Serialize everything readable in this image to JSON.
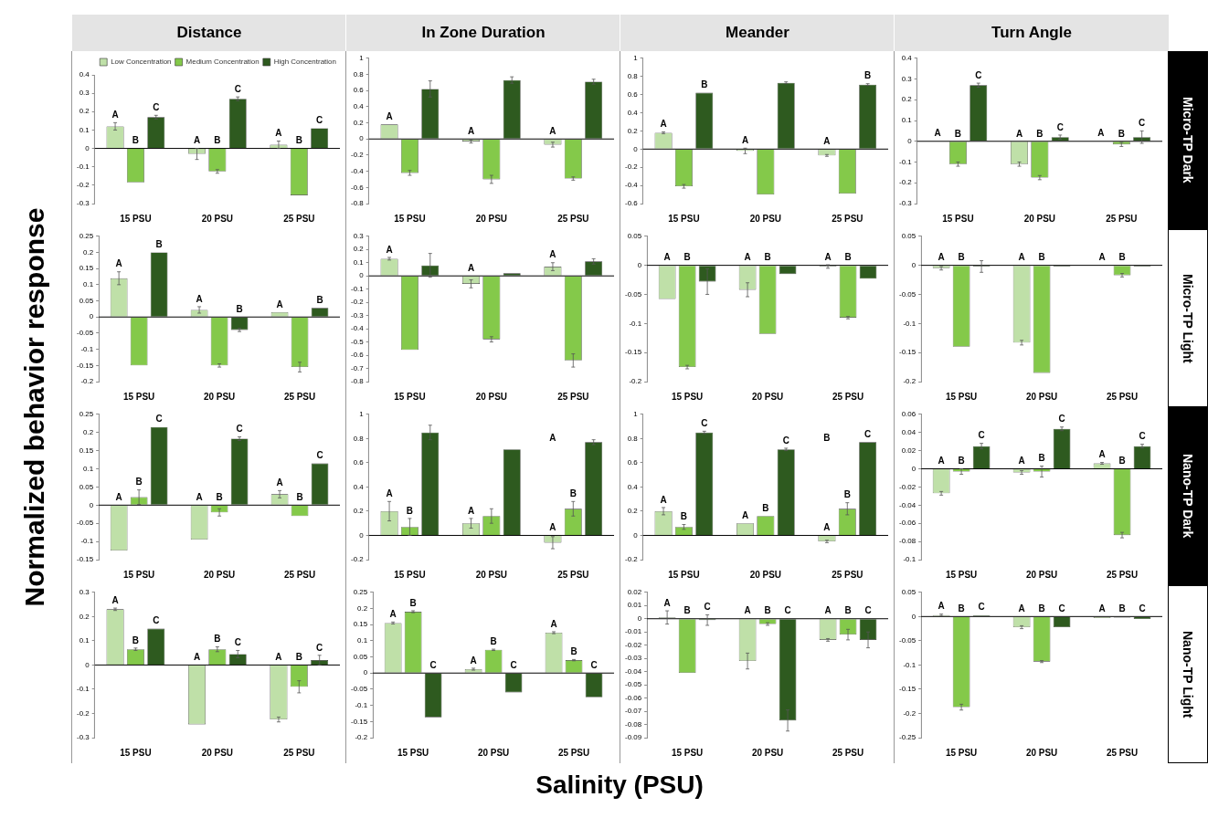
{
  "chart_data": [
    {
      "type": "bar",
      "title": "Distance",
      "categories": [
        "15 PSU",
        "20 PSU",
        "25 PSU"
      ],
      "ylim": [
        -0.3,
        0.4
      ],
      "yticks": [
        -0.3,
        -0.2,
        -0.1,
        0,
        0.1,
        0.2,
        0.3,
        0.4
      ],
      "legend": "top right",
      "series": [
        {
          "name": "Low Concentration",
          "color": "#bfe0a8",
          "values": [
            0.12,
            -0.03,
            0.02
          ],
          "errors": [
            0.02,
            0.03,
            0.02
          ],
          "value_labels": [
            "A",
            "A",
            "A"
          ]
        },
        {
          "name": "Medium Concentration",
          "color": "#84c94a",
          "values": [
            -0.185,
            -0.125,
            -0.255
          ],
          "errors": [
            null,
            0.01,
            null
          ],
          "value_labels": [
            "B",
            "B",
            "B"
          ]
        },
        {
          "name": "High Concentration",
          "color": "#2e5a1f",
          "values": [
            0.17,
            0.27,
            0.11
          ],
          "errors": [
            0.01,
            0.01,
            null
          ],
          "value_labels": [
            "C",
            "C",
            "C"
          ]
        }
      ]
    },
    {
      "type": "bar",
      "title": "In Zone Duration",
      "categories": [
        "15 PSU",
        "20 PSU",
        "25 PSU"
      ],
      "ylim": [
        -0.8,
        1
      ],
      "yticks": [
        -0.8,
        -0.6,
        -0.4,
        -0.2,
        0,
        0.2,
        0.4,
        0.6,
        0.8,
        1
      ],
      "series": [
        {
          "color": "#bfe0a8",
          "values": [
            0.18,
            -0.03,
            -0.07
          ],
          "errors": [
            null,
            0.02,
            0.03
          ],
          "value_labels": [
            "A",
            "A",
            "A"
          ]
        },
        {
          "color": "#84c94a",
          "values": [
            -0.42,
            -0.5,
            -0.49
          ],
          "errors": [
            0.03,
            0.05,
            0.02
          ]
        },
        {
          "color": "#2e5a1f",
          "values": [
            0.62,
            0.73,
            0.71
          ],
          "errors": [
            0.1,
            0.04,
            0.03
          ]
        }
      ]
    },
    {
      "type": "bar",
      "title": "Meander",
      "categories": [
        "15 PSU",
        "20 PSU",
        "25 PSU"
      ],
      "ylim": [
        -0.6,
        1
      ],
      "yticks": [
        -0.6,
        -0.4,
        -0.2,
        0,
        0.2,
        0.4,
        0.6,
        0.8,
        1
      ],
      "series": [
        {
          "color": "#bfe0a8",
          "values": [
            0.18,
            -0.02,
            -0.07
          ],
          "errors": [
            0.01,
            0.03,
            0.01
          ],
          "value_labels": [
            "A",
            "A",
            "A"
          ]
        },
        {
          "color": "#84c94a",
          "values": [
            -0.41,
            -0.5,
            -0.49
          ],
          "errors": [
            0.02,
            null,
            null
          ]
        },
        {
          "color": "#2e5a1f",
          "values": [
            0.62,
            0.73,
            0.71
          ],
          "errors": [
            null,
            0.01,
            0.01
          ],
          "value_labels": [
            "B",
            null,
            "B"
          ]
        }
      ]
    },
    {
      "type": "bar",
      "title": "Turn Angle",
      "y2label": "Micro-TP Dark",
      "categories": [
        "15 PSU",
        "20 PSU",
        "25 PSU"
      ],
      "ylim": [
        -0.3,
        0.4
      ],
      "yticks": [
        -0.3,
        -0.2,
        -0.1,
        0,
        0.1,
        0.2,
        0.3,
        0.4
      ],
      "series": [
        {
          "color": "#bfe0a8",
          "values": [
            0.002,
            -0.11,
            0.002
          ],
          "errors": [
            null,
            0.01,
            null
          ],
          "value_labels": [
            "A",
            "A",
            "A"
          ]
        },
        {
          "color": "#84c94a",
          "values": [
            -0.11,
            -0.175,
            -0.015
          ],
          "errors": [
            0.01,
            0.01,
            0.01
          ],
          "value_labels": [
            "B",
            "B",
            "B"
          ]
        },
        {
          "color": "#2e5a1f",
          "values": [
            0.27,
            0.02,
            0.02
          ],
          "errors": [
            0.01,
            0.01,
            0.03
          ],
          "value_labels": [
            "C",
            "C",
            "C"
          ]
        }
      ]
    },
    {
      "type": "bar",
      "categories": [
        "15 PSU",
        "20 PSU",
        "25 PSU"
      ],
      "ylim": [
        -0.2,
        0.25
      ],
      "yticks": [
        -0.2,
        -0.15,
        -0.1,
        -0.05,
        0,
        0.05,
        0.1,
        0.15,
        0.2,
        0.25
      ],
      "series": [
        {
          "color": "#bfe0a8",
          "values": [
            0.12,
            0.022,
            0.015
          ],
          "errors": [
            0.02,
            0.01,
            null
          ],
          "value_labels": [
            "A",
            "A",
            "A"
          ]
        },
        {
          "color": "#84c94a",
          "values": [
            -0.15,
            -0.15,
            -0.155
          ],
          "errors": [
            null,
            0.005,
            0.015
          ]
        },
        {
          "color": "#2e5a1f",
          "values": [
            0.2,
            -0.04,
            0.028
          ],
          "errors": [
            null,
            0.005,
            null
          ],
          "value_labels": [
            "B",
            "B",
            "B"
          ]
        }
      ]
    },
    {
      "type": "bar",
      "categories": [
        "15 PSU",
        "20 PSU",
        "25 PSU"
      ],
      "ylim": [
        -0.8,
        0.3
      ],
      "yticks": [
        -0.8,
        -0.7,
        -0.6,
        -0.5,
        -0.4,
        -0.3,
        -0.2,
        -0.1,
        0,
        0.1,
        0.2,
        0.3
      ],
      "series": [
        {
          "color": "#bfe0a8",
          "values": [
            0.13,
            -0.06,
            0.07
          ],
          "errors": [
            0.01,
            0.03,
            0.03
          ],
          "value_labels": [
            "A",
            "A",
            "A"
          ]
        },
        {
          "color": "#84c94a",
          "values": [
            -0.56,
            -0.48,
            -0.64
          ],
          "errors": [
            null,
            0.02,
            0.05
          ]
        },
        {
          "color": "#2e5a1f",
          "values": [
            0.08,
            0.02,
            0.11
          ],
          "errors": [
            0.09,
            null,
            0.02
          ]
        }
      ]
    },
    {
      "type": "bar",
      "categories": [
        "15 PSU",
        "20 PSU",
        "25 PSU"
      ],
      "ylim": [
        -0.2,
        0.05
      ],
      "yticks": [
        -0.2,
        -0.15,
        -0.1,
        -0.05,
        0,
        0.05
      ],
      "series": [
        {
          "color": "#bfe0a8",
          "values": [
            -0.058,
            -0.042,
            -0.002
          ],
          "errors": [
            null,
            0.012,
            0.003
          ],
          "value_labels": [
            "A",
            "A",
            "A"
          ]
        },
        {
          "color": "#84c94a",
          "values": [
            -0.175,
            -0.118,
            -0.09
          ],
          "errors": [
            0.003,
            null,
            0.002
          ],
          "value_labels": [
            "B",
            "B",
            "B"
          ]
        },
        {
          "color": "#2e5a1f",
          "values": [
            -0.028,
            -0.015,
            -0.023
          ],
          "errors": [
            0.022,
            null,
            null
          ]
        }
      ]
    },
    {
      "type": "bar",
      "y2label": "Micro-TP Light",
      "categories": [
        "15 PSU",
        "20 PSU",
        "25 PSU"
      ],
      "ylim": [
        -0.2,
        0.05
      ],
      "yticks": [
        -0.2,
        -0.15,
        -0.1,
        -0.05,
        0,
        0.05
      ],
      "series": [
        {
          "color": "#bfe0a8",
          "values": [
            -0.005,
            -0.133,
            -0.001
          ],
          "errors": [
            0.003,
            0.004,
            null
          ],
          "value_labels": [
            "A",
            "A",
            "A"
          ]
        },
        {
          "color": "#84c94a",
          "values": [
            -0.14,
            -0.185,
            -0.017
          ],
          "errors": [
            null,
            null,
            0.003
          ],
          "value_labels": [
            "B",
            "B",
            "B"
          ]
        },
        {
          "color": "#2e5a1f",
          "values": [
            -0.002,
            -0.002,
            -0.002
          ],
          "errors": [
            0.01,
            null,
            null
          ]
        }
      ]
    },
    {
      "type": "bar",
      "categories": [
        "15 PSU",
        "20 PSU",
        "25 PSU"
      ],
      "ylim": [
        -0.15,
        0.25
      ],
      "yticks": [
        -0.15,
        -0.1,
        -0.05,
        0,
        0.05,
        0.1,
        0.15,
        0.2,
        0.25
      ],
      "series": [
        {
          "color": "#bfe0a8",
          "values": [
            -0.125,
            -0.095,
            0.03
          ],
          "errors": [
            null,
            null,
            0.01
          ],
          "value_labels": [
            "A",
            "A",
            "A"
          ]
        },
        {
          "color": "#84c94a",
          "values": [
            0.022,
            -0.02,
            -0.03
          ],
          "errors": [
            0.02,
            0.01,
            null
          ],
          "value_labels": [
            "B",
            "B",
            "B"
          ]
        },
        {
          "color": "#2e5a1f",
          "values": [
            0.215,
            0.183,
            0.115
          ],
          "errors": [
            null,
            0.005,
            null
          ],
          "value_labels": [
            "C",
            "C",
            "C"
          ]
        }
      ]
    },
    {
      "type": "bar",
      "categories": [
        "15 PSU",
        "20 PSU",
        "25 PSU"
      ],
      "ylim": [
        -0.2,
        1
      ],
      "yticks": [
        -0.2,
        0,
        0.2,
        0.4,
        0.6,
        0.8,
        1
      ],
      "annotations": [
        "A"
      ],
      "series": [
        {
          "color": "#bfe0a8",
          "values": [
            0.2,
            0.1,
            -0.06
          ],
          "errors": [
            0.08,
            0.04,
            0.05
          ],
          "value_labels": [
            "A",
            "A",
            "A"
          ]
        },
        {
          "color": "#84c94a",
          "values": [
            0.07,
            0.16,
            0.22
          ],
          "errors": [
            0.07,
            0.06,
            0.06
          ],
          "value_labels": [
            "B",
            null,
            "B"
          ]
        },
        {
          "color": "#2e5a1f",
          "values": [
            0.85,
            0.71,
            0.77
          ],
          "errors": [
            0.06,
            null,
            0.02
          ]
        }
      ]
    },
    {
      "type": "bar",
      "categories": [
        "15 PSU",
        "20 PSU",
        "25 PSU"
      ],
      "ylim": [
        -0.2,
        1
      ],
      "yticks": [
        -0.2,
        0,
        0.2,
        0.4,
        0.6,
        0.8,
        1
      ],
      "annotations": [
        "B"
      ],
      "series": [
        {
          "color": "#bfe0a8",
          "values": [
            0.2,
            0.1,
            -0.05
          ],
          "errors": [
            0.03,
            null,
            0.01
          ],
          "value_labels": [
            "A",
            "A",
            "A"
          ]
        },
        {
          "color": "#84c94a",
          "values": [
            0.07,
            0.16,
            0.22
          ],
          "errors": [
            0.02,
            null,
            0.05
          ],
          "value_labels": [
            "B",
            "B",
            "B"
          ]
        },
        {
          "color": "#2e5a1f",
          "values": [
            0.85,
            0.71,
            0.77
          ],
          "errors": [
            0.01,
            0.01,
            null
          ],
          "value_labels": [
            "C",
            "C",
            "C"
          ]
        }
      ]
    },
    {
      "type": "bar",
      "y2label": "Nano-TP Dark",
      "categories": [
        "15 PSU",
        "20 PSU",
        "25 PSU"
      ],
      "ylim": [
        -0.1,
        0.06
      ],
      "yticks": [
        -0.1,
        -0.08,
        -0.06,
        -0.04,
        -0.02,
        0,
        0.02,
        0.04,
        0.06
      ],
      "series": [
        {
          "color": "#bfe0a8",
          "values": [
            -0.027,
            -0.004,
            0.006
          ],
          "errors": [
            0.002,
            0.002,
            0.001
          ],
          "value_labels": [
            "A",
            "A",
            "A"
          ]
        },
        {
          "color": "#84c94a",
          "values": [
            -0.003,
            -0.003,
            -0.073
          ],
          "errors": [
            0.003,
            0.006,
            0.003
          ],
          "value_labels": [
            "B",
            "B",
            "B"
          ]
        },
        {
          "color": "#2e5a1f",
          "values": [
            0.025,
            0.044,
            0.025
          ],
          "errors": [
            0.003,
            0.002,
            0.002
          ],
          "value_labels": [
            "C",
            "C",
            "C"
          ]
        }
      ]
    },
    {
      "type": "bar",
      "categories": [
        "15 PSU",
        "20 PSU",
        "25 PSU"
      ],
      "ylim": [
        -0.3,
        0.3
      ],
      "yticks": [
        -0.3,
        -0.2,
        -0.1,
        0,
        0.1,
        0.2,
        0.3
      ],
      "series": [
        {
          "color": "#bfe0a8",
          "values": [
            0.23,
            -0.245,
            -0.225
          ],
          "errors": [
            0.005,
            null,
            0.01
          ],
          "value_labels": [
            "A",
            "A",
            "A"
          ]
        },
        {
          "color": "#84c94a",
          "values": [
            0.065,
            0.065,
            -0.09
          ],
          "errors": [
            0.005,
            0.01,
            0.025
          ],
          "value_labels": [
            "B",
            "B",
            "B"
          ]
        },
        {
          "color": "#2e5a1f",
          "values": [
            0.15,
            0.045,
            0.02
          ],
          "errors": [
            null,
            0.015,
            0.02
          ],
          "value_labels": [
            "C",
            "C",
            "C"
          ]
        }
      ]
    },
    {
      "type": "bar",
      "categories": [
        "15 PSU",
        "20 PSU",
        "25 PSU"
      ],
      "ylim": [
        -0.2,
        0.25
      ],
      "yticks": [
        -0.2,
        -0.15,
        -0.1,
        -0.05,
        0,
        0.05,
        0.1,
        0.15,
        0.2,
        0.25
      ],
      "series": [
        {
          "color": "#bfe0a8",
          "values": [
            0.155,
            0.012,
            0.125
          ],
          "errors": [
            0.003,
            0.003,
            0.003
          ],
          "value_labels": [
            "A",
            "A",
            "A"
          ]
        },
        {
          "color": "#84c94a",
          "values": [
            0.19,
            0.072,
            0.04
          ],
          "errors": [
            0.003,
            0.002,
            0.002
          ],
          "value_labels": [
            "B",
            "B",
            "B"
          ]
        },
        {
          "color": "#2e5a1f",
          "values": [
            -0.137,
            -0.06,
            -0.075
          ],
          "value_labels": [
            "C",
            "C",
            "C"
          ]
        }
      ]
    },
    {
      "type": "bar",
      "categories": [
        "15 PSU",
        "20 PSU",
        "25 PSU"
      ],
      "ylim": [
        -0.09,
        0.02
      ],
      "yticks": [
        -0.09,
        -0.08,
        -0.07,
        -0.06,
        -0.05,
        -0.04,
        -0.03,
        -0.02,
        -0.01,
        0,
        0.01,
        0.02
      ],
      "series": [
        {
          "color": "#bfe0a8",
          "values": [
            0.001,
            -0.032,
            -0.016
          ],
          "errors": [
            0.005,
            0.006,
            0.001
          ],
          "value_labels": [
            "A",
            "A",
            "A"
          ]
        },
        {
          "color": "#84c94a",
          "values": [
            -0.041,
            -0.004,
            -0.012
          ],
          "errors": [
            null,
            0.001,
            0.004
          ],
          "value_labels": [
            "B",
            "B",
            "B"
          ]
        },
        {
          "color": "#2e5a1f",
          "values": [
            -0.001,
            -0.077,
            -0.016
          ],
          "errors": [
            0.004,
            0.008,
            0.006
          ],
          "value_labels": [
            "C",
            "C",
            "C"
          ]
        }
      ]
    },
    {
      "type": "bar",
      "y2label": "Nano-TP Light",
      "categories": [
        "15 PSU",
        "20 PSU",
        "25 PSU"
      ],
      "ylim": [
        -0.25,
        0.05
      ],
      "yticks": [
        -0.25,
        -0.2,
        -0.15,
        -0.1,
        -0.05,
        0,
        0.05
      ],
      "series": [
        {
          "color": "#bfe0a8",
          "values": [
            0.003,
            -0.022,
            -0.003
          ],
          "errors": [
            0.002,
            0.003,
            null
          ],
          "value_labels": [
            "A",
            "A",
            "A"
          ]
        },
        {
          "color": "#84c94a",
          "values": [
            -0.187,
            -0.093,
            -0.002
          ],
          "errors": [
            0.006,
            0.002,
            null
          ],
          "value_labels": [
            "B",
            "B",
            "B"
          ]
        },
        {
          "color": "#2e5a1f",
          "values": [
            0.003,
            -0.022,
            -0.005
          ],
          "value_labels": [
            "C",
            "C",
            "C"
          ]
        }
      ]
    },
    {
      "type": "other",
      "ylabel": "Normalized behavior response",
      "xlabel": "Salinity (PSU)"
    }
  ]
}
